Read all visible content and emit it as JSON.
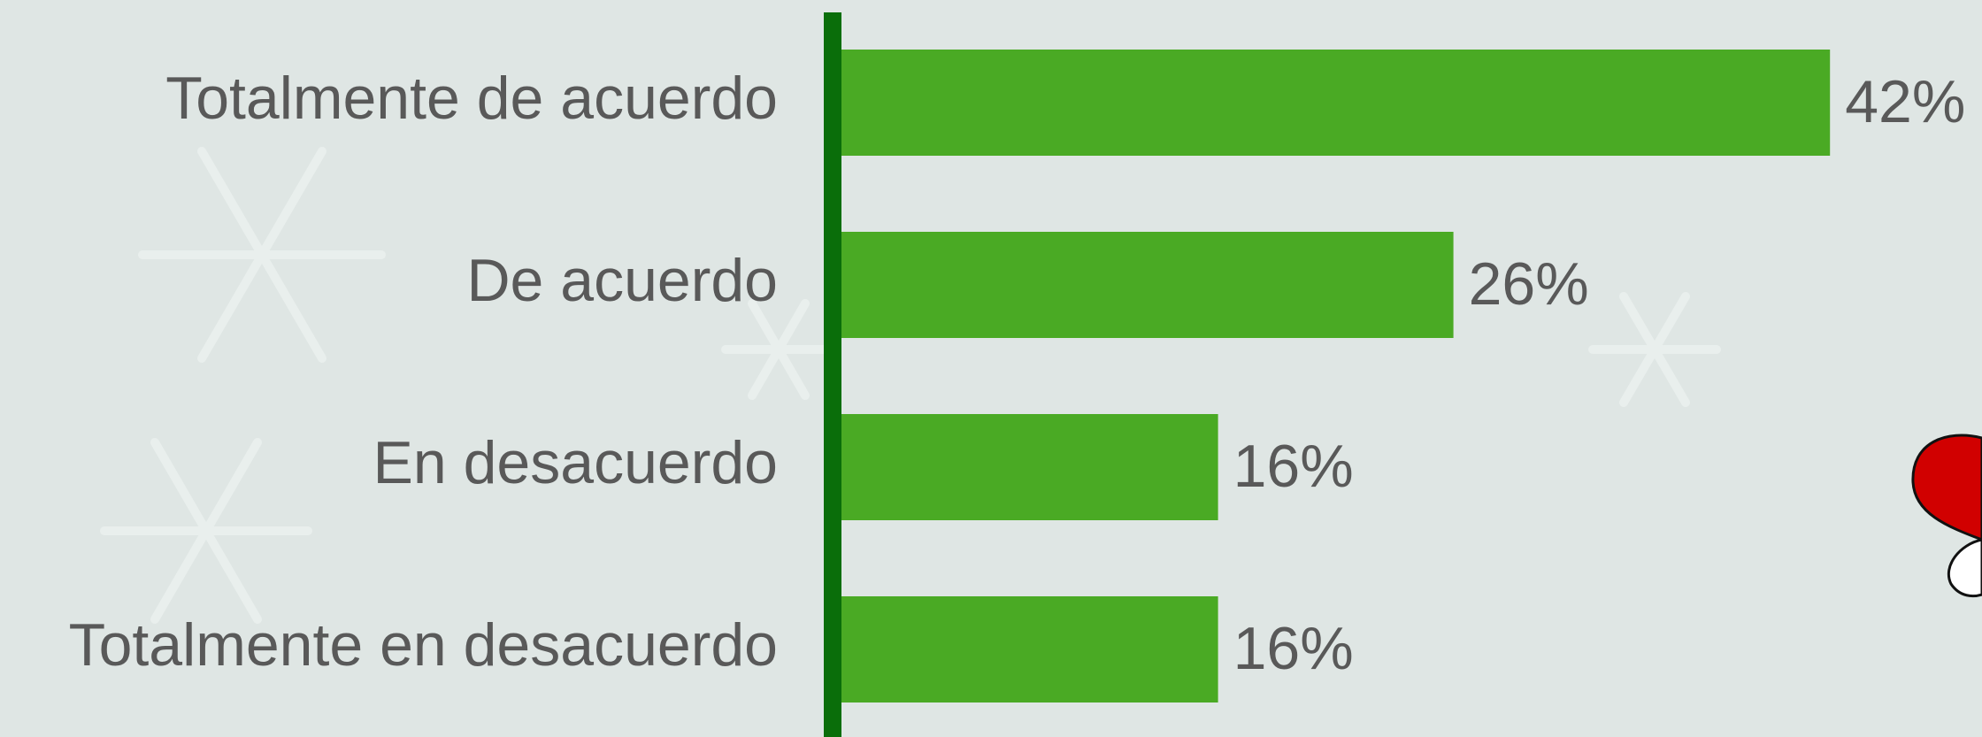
{
  "chart_data": {
    "type": "bar",
    "orientation": "horizontal",
    "categories": [
      "Totalmente de acuerdo",
      "De acuerdo",
      "En desacuerdo",
      "Totalmente en desacuerdo"
    ],
    "values": [
      42,
      26,
      16,
      16
    ],
    "value_labels": [
      "42%",
      "26%",
      "16%",
      "16%"
    ],
    "color": "#4aaa24"
  }
}
